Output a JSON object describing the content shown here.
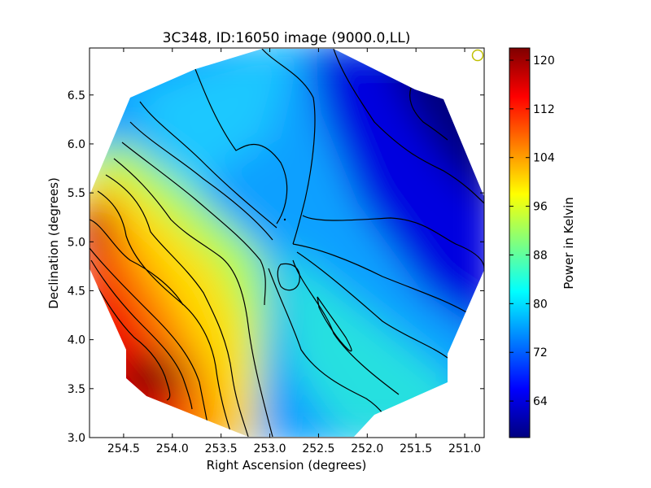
{
  "chart_data": {
    "type": "heatmap",
    "title": "3C348, ID:16050 image (9000.0,LL)",
    "xlabel": "Right Ascension (degrees)",
    "ylabel": "Declination (degrees)",
    "xlim": [
      254.85,
      250.8
    ],
    "ylim": [
      3.0,
      6.98
    ],
    "x_ticks": [
      "254.5",
      "254.0",
      "253.5",
      "253.0",
      "252.5",
      "252.0",
      "251.5",
      "251.0"
    ],
    "y_ticks": [
      "3.0",
      "3.5",
      "4.0",
      "4.5",
      "5.0",
      "5.5",
      "6.0",
      "6.5"
    ],
    "colorbar": {
      "label": "Power in Kelvin",
      "range": [
        58,
        122
      ],
      "ticks": [
        "64",
        "72",
        "80",
        "88",
        "96",
        "104",
        "112",
        "120"
      ],
      "colormap": "jet"
    },
    "grid": false,
    "contours": true,
    "field_samples": [
      {
        "ra": 254.75,
        "dec": 5.0,
        "value": 118
      },
      {
        "ra": 254.3,
        "dec": 3.6,
        "value": 120
      },
      {
        "ra": 253.9,
        "dec": 4.5,
        "value": 100
      },
      {
        "ra": 253.4,
        "dec": 5.3,
        "value": 95
      },
      {
        "ra": 253.2,
        "dec": 3.4,
        "value": 97
      },
      {
        "ra": 252.7,
        "dec": 4.5,
        "value": 82
      },
      {
        "ra": 252.9,
        "dec": 6.3,
        "value": 76
      },
      {
        "ra": 251.9,
        "dec": 3.9,
        "value": 80
      },
      {
        "ra": 252.0,
        "dec": 5.6,
        "value": 70
      },
      {
        "ra": 251.0,
        "dec": 6.2,
        "value": 61
      },
      {
        "ra": 251.0,
        "dec": 4.6,
        "value": 63
      }
    ],
    "beam_marker": {
      "ra": 250.9,
      "dec": 6.92
    }
  },
  "colors": {
    "colormap_stops": [
      "#00007f",
      "#0000ff",
      "#007fff",
      "#00ffff",
      "#7fff7f",
      "#ffff00",
      "#ff7f00",
      "#ff0000",
      "#7f0000"
    ],
    "contour": "#000000",
    "beam_marker": "#bfbf00",
    "frame": "#000000"
  }
}
